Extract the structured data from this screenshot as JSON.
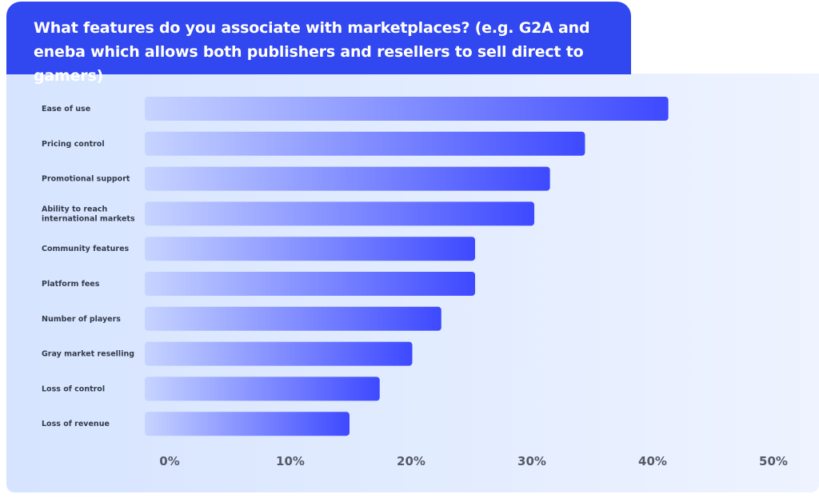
{
  "header": {
    "title": "What features do you associate with marketplaces? (e.g. G2A and eneba which allows both publishers and resellers to sell direct to gamers)"
  },
  "colors": {
    "title_bg": "#3147f0",
    "bar_start": "#c7d4ff",
    "bar_end": "#3e49ff",
    "panel_bg": "#dde8ff"
  },
  "chart_data": {
    "type": "bar",
    "orientation": "horizontal",
    "title": "What features do you associate with marketplaces? (e.g. G2A and eneba which allows both publishers and resellers to sell direct to gamers)",
    "categories": [
      "Ease  of use",
      "Pricing control",
      "Promotional support",
      "Ability to reach international markets",
      "Community features",
      "Platform fees",
      "Number of players",
      "Gray market  reselling",
      "Loss of control",
      "Loss of revenue"
    ],
    "values": [
      41.3,
      34.4,
      31.5,
      30.2,
      25.3,
      25.3,
      22.5,
      20.1,
      17.4,
      14.9
    ],
    "xticks": [
      "0%",
      "10%",
      "20%",
      "30%",
      "40%",
      "50%"
    ],
    "xlim": [
      0,
      50
    ],
    "xlabel": "",
    "ylabel": "",
    "grid": false,
    "legend": "none"
  }
}
